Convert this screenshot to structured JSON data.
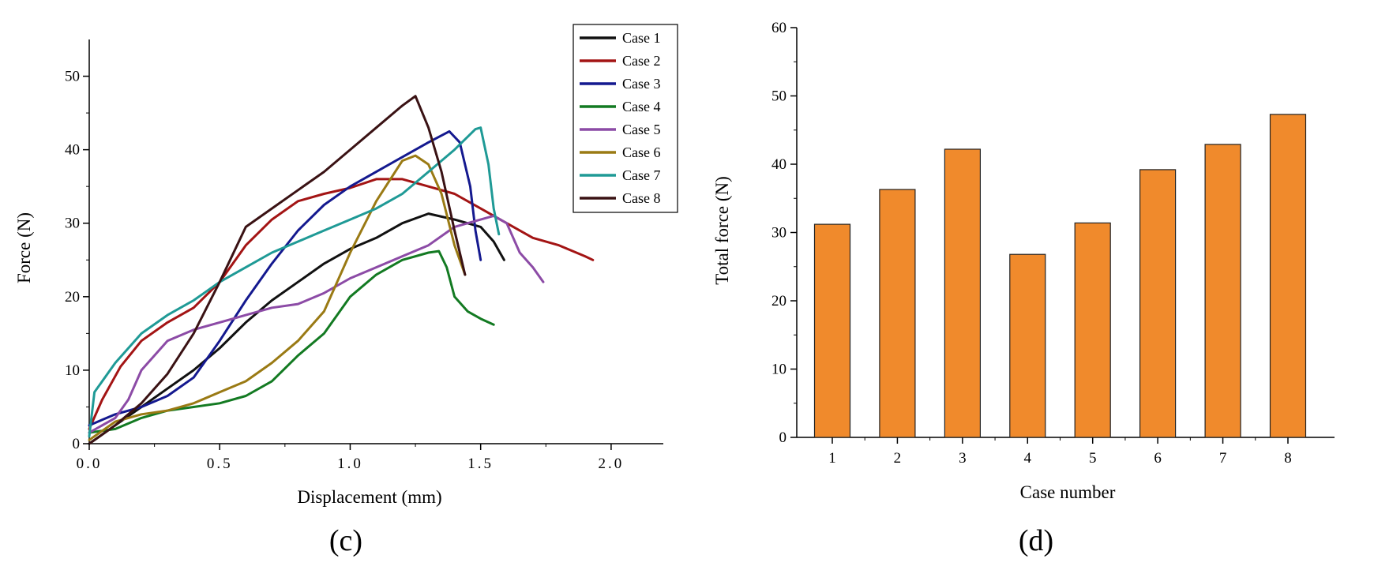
{
  "panels": {
    "c_label": "(c)",
    "d_label": "(d)"
  },
  "chart_data": [
    {
      "id": "c",
      "type": "line",
      "title": "",
      "xlabel": "Displacement (mm)",
      "ylabel": "Force (N)",
      "xlim": [
        0.0,
        2.2
      ],
      "ylim": [
        0,
        55
      ],
      "x_ticks": [
        0.0,
        0.5,
        1.0,
        1.5,
        2.0
      ],
      "x_tick_labels": [
        "0.0",
        "0.5",
        "1.0",
        "1.5",
        "2.0"
      ],
      "y_ticks": [
        0,
        10,
        20,
        30,
        40,
        50
      ],
      "y_tick_labels": [
        "0",
        "10",
        "20",
        "30",
        "40",
        "50"
      ],
      "legend_position": "top-right",
      "grid": false,
      "series": [
        {
          "name": "Case 1",
          "color": "#111111",
          "points": [
            [
              0,
              0
            ],
            [
              0.1,
              2.5
            ],
            [
              0.2,
              5
            ],
            [
              0.3,
              7.5
            ],
            [
              0.4,
              10
            ],
            [
              0.5,
              13
            ],
            [
              0.6,
              16.5
            ],
            [
              0.7,
              19.5
            ],
            [
              0.8,
              22
            ],
            [
              0.9,
              24.5
            ],
            [
              1.0,
              26.5
            ],
            [
              1.1,
              28
            ],
            [
              1.2,
              30
            ],
            [
              1.3,
              31.3
            ],
            [
              1.4,
              30.5
            ],
            [
              1.5,
              29.5
            ],
            [
              1.55,
              27.5
            ],
            [
              1.59,
              25
            ]
          ]
        },
        {
          "name": "Case 2",
          "color": "#a31414",
          "points": [
            [
              0,
              2
            ],
            [
              0.05,
              6
            ],
            [
              0.12,
              10.5
            ],
            [
              0.2,
              14
            ],
            [
              0.3,
              16.5
            ],
            [
              0.4,
              18.5
            ],
            [
              0.5,
              22
            ],
            [
              0.6,
              27
            ],
            [
              0.7,
              30.5
            ],
            [
              0.8,
              33
            ],
            [
              0.9,
              34
            ],
            [
              1.0,
              34.8
            ],
            [
              1.1,
              36
            ],
            [
              1.2,
              36
            ],
            [
              1.3,
              35
            ],
            [
              1.4,
              34
            ],
            [
              1.5,
              32
            ],
            [
              1.6,
              30
            ],
            [
              1.7,
              28
            ],
            [
              1.8,
              27
            ],
            [
              1.9,
              25.5
            ],
            [
              1.93,
              25
            ]
          ]
        },
        {
          "name": "Case 3",
          "color": "#14198f",
          "points": [
            [
              0,
              2.5
            ],
            [
              0.1,
              4
            ],
            [
              0.2,
              5
            ],
            [
              0.3,
              6.5
            ],
            [
              0.4,
              9
            ],
            [
              0.5,
              14
            ],
            [
              0.6,
              19.5
            ],
            [
              0.7,
              24.5
            ],
            [
              0.8,
              29
            ],
            [
              0.9,
              32.5
            ],
            [
              1.0,
              35
            ],
            [
              1.1,
              37
            ],
            [
              1.2,
              39
            ],
            [
              1.3,
              41
            ],
            [
              1.38,
              42.5
            ],
            [
              1.42,
              41
            ],
            [
              1.46,
              35
            ],
            [
              1.48,
              29
            ],
            [
              1.5,
              25
            ]
          ]
        },
        {
          "name": "Case 4",
          "color": "#137a22",
          "points": [
            [
              0,
              1.5
            ],
            [
              0.1,
              2
            ],
            [
              0.2,
              3.5
            ],
            [
              0.3,
              4.5
            ],
            [
              0.4,
              5
            ],
            [
              0.5,
              5.5
            ],
            [
              0.6,
              6.5
            ],
            [
              0.7,
              8.5
            ],
            [
              0.8,
              12
            ],
            [
              0.9,
              15
            ],
            [
              1.0,
              20
            ],
            [
              1.1,
              23
            ],
            [
              1.2,
              25
            ],
            [
              1.3,
              26
            ],
            [
              1.34,
              26.2
            ],
            [
              1.37,
              24
            ],
            [
              1.4,
              20
            ],
            [
              1.45,
              18
            ],
            [
              1.5,
              17
            ],
            [
              1.55,
              16.2
            ]
          ]
        },
        {
          "name": "Case 5",
          "color": "#8c4ba6",
          "points": [
            [
              0,
              1.5
            ],
            [
              0.1,
              3.5
            ],
            [
              0.15,
              6
            ],
            [
              0.2,
              10
            ],
            [
              0.3,
              14
            ],
            [
              0.4,
              15.5
            ],
            [
              0.5,
              16.5
            ],
            [
              0.6,
              17.5
            ],
            [
              0.7,
              18.5
            ],
            [
              0.8,
              19
            ],
            [
              0.9,
              20.5
            ],
            [
              1.0,
              22.5
            ],
            [
              1.1,
              24
            ],
            [
              1.2,
              25.5
            ],
            [
              1.3,
              27
            ],
            [
              1.4,
              29.5
            ],
            [
              1.5,
              30.5
            ],
            [
              1.55,
              31
            ],
            [
              1.6,
              30
            ],
            [
              1.65,
              26
            ],
            [
              1.7,
              24
            ],
            [
              1.74,
              22
            ]
          ]
        },
        {
          "name": "Case 6",
          "color": "#9a7a14",
          "points": [
            [
              0,
              0.5
            ],
            [
              0.1,
              3
            ],
            [
              0.2,
              4
            ],
            [
              0.3,
              4.5
            ],
            [
              0.4,
              5.5
            ],
            [
              0.5,
              7
            ],
            [
              0.6,
              8.5
            ],
            [
              0.7,
              11
            ],
            [
              0.8,
              14
            ],
            [
              0.9,
              18
            ],
            [
              1.0,
              26
            ],
            [
              1.1,
              33
            ],
            [
              1.2,
              38.5
            ],
            [
              1.25,
              39.2
            ],
            [
              1.3,
              38
            ],
            [
              1.35,
              34
            ],
            [
              1.4,
              27
            ],
            [
              1.44,
              23
            ]
          ]
        },
        {
          "name": "Case 7",
          "color": "#1f9a96",
          "points": [
            [
              0,
              1
            ],
            [
              0.02,
              7
            ],
            [
              0.1,
              11
            ],
            [
              0.2,
              15
            ],
            [
              0.3,
              17.5
            ],
            [
              0.4,
              19.5
            ],
            [
              0.5,
              22
            ],
            [
              0.6,
              24
            ],
            [
              0.7,
              26
            ],
            [
              0.8,
              27.5
            ],
            [
              0.9,
              29
            ],
            [
              1.0,
              30.5
            ],
            [
              1.1,
              32
            ],
            [
              1.2,
              34
            ],
            [
              1.3,
              37
            ],
            [
              1.4,
              40
            ],
            [
              1.48,
              42.8
            ],
            [
              1.5,
              43
            ],
            [
              1.53,
              38
            ],
            [
              1.55,
              32
            ],
            [
              1.57,
              28.5
            ]
          ]
        },
        {
          "name": "Case 8",
          "color": "#3a1214",
          "points": [
            [
              0,
              0
            ],
            [
              0.1,
              2.5
            ],
            [
              0.2,
              5.5
            ],
            [
              0.3,
              9.5
            ],
            [
              0.4,
              15
            ],
            [
              0.5,
              22
            ],
            [
              0.6,
              29.5
            ],
            [
              0.7,
              32
            ],
            [
              0.8,
              34.5
            ],
            [
              0.9,
              37
            ],
            [
              1.0,
              40
            ],
            [
              1.1,
              43
            ],
            [
              1.2,
              46
            ],
            [
              1.25,
              47.3
            ],
            [
              1.3,
              43
            ],
            [
              1.35,
              37
            ],
            [
              1.4,
              29
            ],
            [
              1.44,
              23
            ]
          ]
        }
      ]
    },
    {
      "id": "d",
      "type": "bar",
      "title": "",
      "xlabel": "Case number",
      "ylabel": "Total force (N)",
      "ylim": [
        0,
        60
      ],
      "y_ticks": [
        0,
        10,
        20,
        30,
        40,
        50,
        60
      ],
      "y_tick_labels": [
        "0",
        "10",
        "20",
        "30",
        "40",
        "50",
        "60"
      ],
      "categories": [
        "1",
        "2",
        "3",
        "4",
        "5",
        "6",
        "7",
        "8"
      ],
      "values": [
        31.2,
        36.3,
        42.2,
        26.8,
        31.4,
        39.2,
        42.9,
        47.3
      ],
      "bar_color": "#f08a2c",
      "grid": false
    }
  ]
}
